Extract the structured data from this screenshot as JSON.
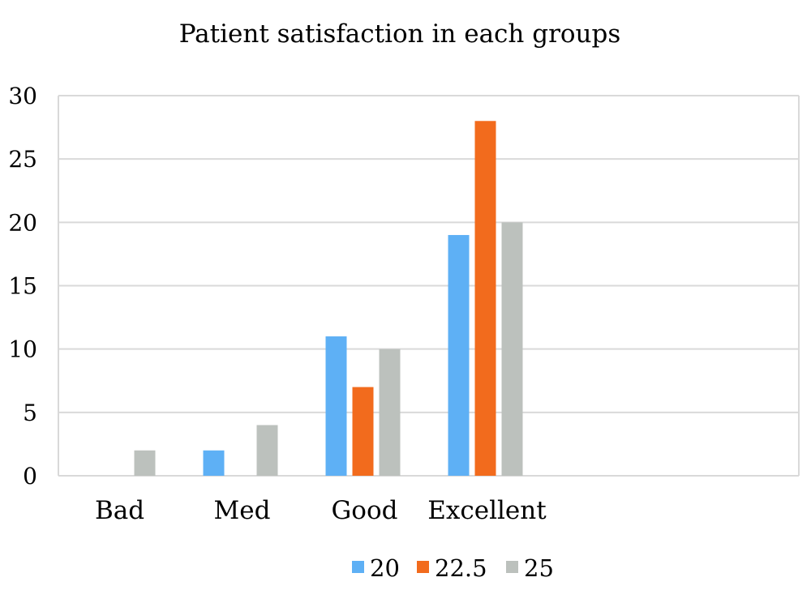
{
  "chart_data": {
    "type": "bar",
    "title": "Patient satisfaction in each groups",
    "xlabel": "",
    "ylabel": "",
    "categories": [
      "Bad",
      "Med",
      "Good",
      "Excellent",
      "",
      "",
      ""
    ],
    "series": [
      {
        "name": "20",
        "color": "#5eb0f5",
        "values": [
          0,
          2,
          11,
          19,
          0,
          0,
          0
        ]
      },
      {
        "name": "22.5",
        "color": "#f26b1d",
        "values": [
          0,
          0,
          7,
          28,
          0,
          0,
          0
        ]
      },
      {
        "name": "25",
        "color": "#bcc1bd",
        "values": [
          2,
          4,
          10,
          20,
          0,
          0,
          0
        ]
      }
    ],
    "ylim": [
      0,
      30
    ],
    "yticks": [
      "0",
      "5",
      "10",
      "15",
      "20",
      "25",
      "30"
    ],
    "grid": true,
    "legend_position": "bottom"
  }
}
